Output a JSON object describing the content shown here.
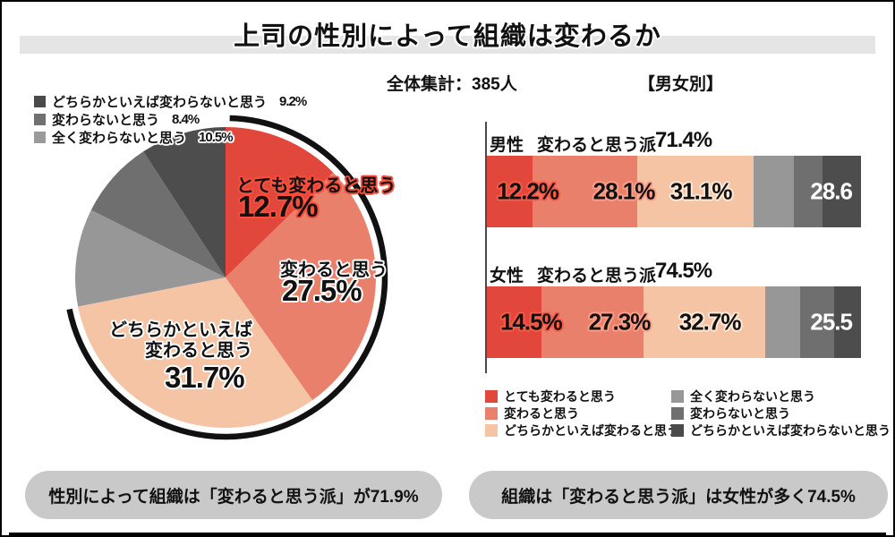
{
  "title": "上司の性別によって組織は変わるか",
  "subtitle": {
    "total": "全体集計：385人",
    "by_gender": "【男女別】"
  },
  "ui_colors": {
    "title_band": "#e5e5e5",
    "pill_bg": "#c9c9c9",
    "frame": "#000000",
    "accent_red": "#e2473c"
  },
  "chart_data": [
    {
      "type": "pie",
      "title": "全体集計：385人",
      "labels": [
        "とても変わると思う",
        "変わると思う",
        "どちらかといえば変わると思う",
        "全く変わらないと思う",
        "変わらないと思う",
        "どちらかといえば変わらないと思う"
      ],
      "values": [
        12.7,
        27.5,
        31.7,
        10.5,
        8.4,
        9.2
      ],
      "colors": [
        "#e2473c",
        "#e9806c",
        "#f5c4a4",
        "#979797",
        "#6f6f6f",
        "#4d4d4d"
      ],
      "start": "top",
      "direction": "clockwise",
      "arc_annotation": {
        "group_label": "変わると思う派",
        "group_value_pct": 71.9,
        "start_deg": 1.5,
        "end_deg": 258.5,
        "color": "#111111"
      },
      "slice_callouts": {
        "s1": {
          "label": "とても変わると思う",
          "value": "12.7%"
        },
        "s2": {
          "label": "変わると思う",
          "value": "27.5%"
        },
        "s3": {
          "label": "どちらかといえば\n変わると思う",
          "value": "31.7%"
        }
      },
      "outside_legend": [
        {
          "label": "どちらかといえば変わらないと思う",
          "value": "9.2%",
          "color": "#4a4a4a"
        },
        {
          "label": "変わらないと思う",
          "value": "8.4%",
          "color": "#707070"
        },
        {
          "label": "全く変わらないと思う",
          "value": "10.5%",
          "color": "#9a9a9a"
        }
      ]
    },
    {
      "type": "bar",
      "subtype": "horizontal-stacked",
      "max_pct": 100,
      "series": [
        "とても変わると思う",
        "変わると思う",
        "どちらかといえば変わると思う",
        "全く変わらないと思う",
        "変わらないと思う",
        "どちらかといえば変わらないと思う"
      ],
      "segment_colors": [
        "#e2473c",
        "#e9806c",
        "#f5c4a4",
        "#979797",
        "#6f6f6f",
        "#4d4d4d"
      ],
      "bars": [
        {
          "category": "男性",
          "group_label": "変わると思う派",
          "group_value": "71.4%",
          "segments": [
            12.2,
            28.1,
            31.1,
            10.7,
            7.6,
            10.3
          ],
          "seg_display": [
            "12.2%",
            "28.1%",
            "31.1%"
          ],
          "seg_centers_pct": [
            10.9,
            36.6,
            57.2
          ],
          "gray_total_label": "28.6"
        },
        {
          "category": "女性",
          "group_label": "変わると思う派",
          "group_value": "74.5%",
          "segments": [
            14.5,
            27.3,
            32.7,
            9.2,
            9.2,
            7.1
          ],
          "seg_display": [
            "14.5%",
            "27.3%",
            "32.7%"
          ],
          "seg_centers_pct": [
            11.8,
            35.4,
            59.6
          ],
          "gray_total_label": "25.5"
        }
      ],
      "legend_left": [
        {
          "label": "とても変わると思う",
          "color": "#e2473c"
        },
        {
          "label": "変わると思う",
          "color": "#e9806c"
        },
        {
          "label": "どちらかといえば変わると思う",
          "color": "#f5c4a4"
        }
      ],
      "legend_right": [
        {
          "label": "全く変わらないと思う",
          "color": "#979797"
        },
        {
          "label": "変わらないと思う",
          "color": "#6f6f6f"
        },
        {
          "label": "どちらかといえば変わらないと思う",
          "color": "#4a4a4a"
        }
      ]
    }
  ],
  "conclusions": [
    "性別によって組織は「変わると思う派」が71.9%",
    "組織は「変わると思う派」は女性が多く74.5%"
  ]
}
